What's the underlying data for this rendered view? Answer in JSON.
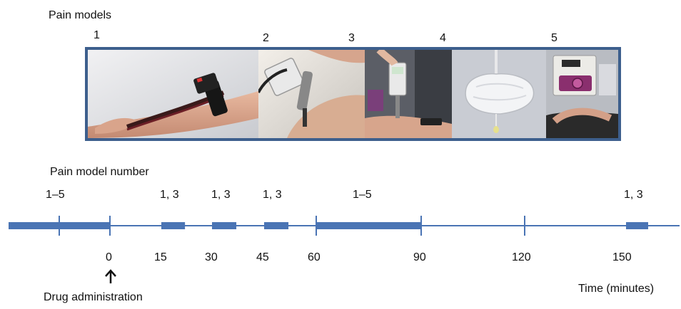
{
  "figure": {
    "section_pain_models": "Pain models",
    "section_model_number": "Pain model number",
    "drug_label": "Drug administration",
    "time_axis_label": "Time (minutes)",
    "photos": [
      {
        "number": "1",
        "icon": "arm-cuff-photo"
      },
      {
        "number": "2",
        "icon": "pressure-algometer-knee-photo"
      },
      {
        "number": "3",
        "icon": "pressure-algometer-arm-photo"
      },
      {
        "number": "4",
        "icon": "inflated-bag-photo"
      },
      {
        "number": "5",
        "icon": "cold-pressor-device-photo"
      }
    ],
    "time_ticks": [
      "0",
      "15",
      "30",
      "45",
      "60",
      "90",
      "120",
      "150"
    ],
    "blocks": [
      {
        "label": "1–5",
        "start": -30,
        "end": 0
      },
      {
        "label": "1, 3",
        "start": 15,
        "end": 22
      },
      {
        "label": "1, 3",
        "start": 30,
        "end": 37
      },
      {
        "label": "1, 3",
        "start": 45,
        "end": 52
      },
      {
        "label": "1–5",
        "start": 60,
        "end": 90
      },
      {
        "label": "1, 3",
        "start": 150,
        "end": 157
      }
    ],
    "colors": {
      "accent": "#4a74b4",
      "frame": "#3d5f8d"
    }
  }
}
